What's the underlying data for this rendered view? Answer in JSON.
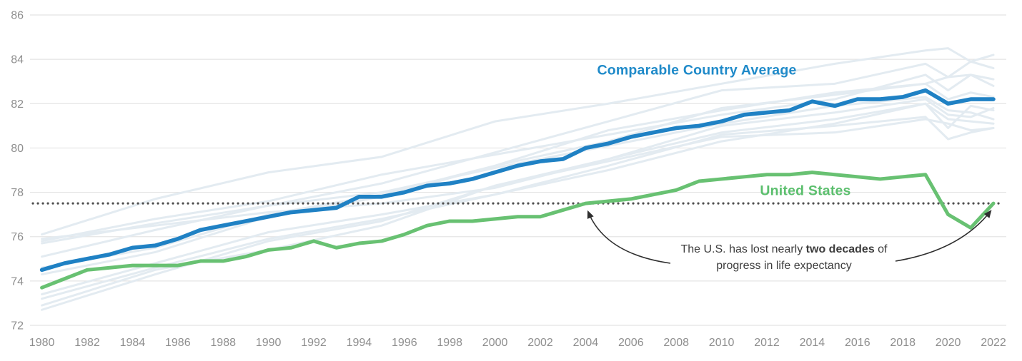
{
  "chart_data": {
    "type": "line",
    "title": "",
    "xlabel": "",
    "ylabel": "",
    "xlim": [
      1980,
      2022
    ],
    "ylim": [
      72,
      86
    ],
    "grid": "horizontal-only",
    "legend_position": "inline-labels-on-chart",
    "x_ticks": [
      1980,
      1982,
      1984,
      1986,
      1988,
      1990,
      1992,
      1994,
      1996,
      1998,
      2000,
      2002,
      2004,
      2006,
      2008,
      2010,
      2012,
      2014,
      2016,
      2018,
      2020,
      2022
    ],
    "y_ticks": [
      86,
      84,
      82,
      80,
      78,
      76,
      74,
      72
    ],
    "x": [
      1980,
      1981,
      1982,
      1983,
      1984,
      1985,
      1986,
      1987,
      1988,
      1989,
      1990,
      1991,
      1992,
      1993,
      1994,
      1995,
      1996,
      1997,
      1998,
      1999,
      2000,
      2001,
      2002,
      2003,
      2004,
      2005,
      2006,
      2007,
      2008,
      2009,
      2010,
      2011,
      2012,
      2013,
      2014,
      2015,
      2016,
      2017,
      2018,
      2019,
      2020,
      2021,
      2022
    ],
    "series": [
      {
        "name": "Comparable Country Average",
        "color": "#1f81c4",
        "values": [
          74.5,
          74.8,
          75.0,
          75.2,
          75.5,
          75.6,
          75.9,
          76.3,
          76.5,
          76.7,
          76.9,
          77.1,
          77.2,
          77.3,
          77.8,
          77.8,
          78.0,
          78.3,
          78.4,
          78.6,
          78.9,
          79.2,
          79.4,
          79.5,
          80.0,
          80.2,
          80.5,
          80.7,
          80.9,
          81.0,
          81.2,
          81.5,
          81.6,
          81.7,
          82.1,
          81.9,
          82.2,
          82.2,
          82.3,
          82.6,
          82.0,
          82.2,
          82.2
        ]
      },
      {
        "name": "United States",
        "color": "#68c172",
        "values": [
          73.7,
          74.1,
          74.5,
          74.6,
          74.7,
          74.7,
          74.7,
          74.9,
          74.9,
          75.1,
          75.4,
          75.5,
          75.8,
          75.5,
          75.7,
          75.8,
          76.1,
          76.5,
          76.7,
          76.7,
          76.8,
          76.9,
          76.9,
          77.2,
          77.5,
          77.6,
          77.7,
          77.9,
          78.1,
          78.5,
          78.6,
          78.7,
          78.8,
          78.8,
          78.9,
          78.8,
          78.7,
          78.6,
          78.7,
          78.8,
          77.0,
          76.4,
          77.5
        ]
      }
    ],
    "background_series": {
      "description": "faded unlabeled lines for individual comparable countries (approximate values)",
      "color": "#e3ebf1",
      "x": [
        1980,
        1985,
        1990,
        1995,
        2000,
        2005,
        2010,
        2015,
        2019,
        2020,
        2021,
        2022
      ],
      "lines": [
        [
          76.1,
          77.7,
          78.9,
          79.6,
          81.2,
          82.0,
          82.9,
          83.8,
          84.4,
          84.5,
          83.9,
          84.2
        ],
        [
          75.7,
          76.6,
          77.4,
          78.4,
          79.8,
          81.2,
          82.6,
          82.9,
          83.8,
          83.2,
          83.9,
          83.6
        ],
        [
          75.8,
          76.8,
          77.6,
          78.8,
          79.7,
          80.6,
          81.5,
          82.2,
          83.3,
          82.6,
          83.3,
          83.1
        ],
        [
          74.6,
          75.5,
          77.0,
          77.9,
          79.2,
          80.8,
          81.7,
          82.5,
          82.9,
          83.2,
          83.3,
          82.8
        ],
        [
          74.3,
          75.3,
          76.9,
          77.8,
          79.2,
          80.3,
          81.8,
          82.4,
          82.9,
          82.2,
          82.5,
          82.3
        ],
        [
          75.1,
          76.3,
          77.4,
          78.0,
          79.1,
          80.1,
          81.1,
          81.9,
          82.3,
          81.7,
          81.6,
          81.3
        ],
        [
          75.9,
          76.5,
          77.1,
          77.5,
          78.2,
          79.5,
          81.0,
          81.6,
          82.2,
          81.5,
          81.4,
          81.8
        ],
        [
          73.4,
          74.8,
          76.2,
          77.0,
          77.9,
          79.0,
          80.3,
          81.1,
          82.0,
          80.9,
          81.9,
          81.7
        ],
        [
          72.7,
          74.3,
          75.8,
          76.7,
          78.3,
          79.5,
          80.7,
          81.3,
          82.0,
          81.3,
          81.2,
          81.1
        ],
        [
          72.9,
          74.5,
          75.4,
          76.5,
          78.3,
          79.4,
          80.5,
          80.7,
          81.3,
          81.1,
          80.8,
          80.9
        ],
        [
          73.2,
          74.6,
          75.9,
          76.8,
          77.9,
          79.2,
          80.6,
          81.0,
          81.4,
          80.4,
          80.7,
          80.9
        ]
      ]
    },
    "reference_line": {
      "value": 77.5,
      "style": "dotted",
      "color": "#4d4d4d"
    },
    "annotation": {
      "line1_pre": "The U.S. has lost nearly ",
      "line1_bold": "two decades",
      "line1_post": " of",
      "line2": "progress in life expectancy"
    }
  },
  "colors": {
    "blue_line": "#1f81c4",
    "blue_label": "#1f8ac9",
    "green_line": "#68c172",
    "green_label": "#5cbf6e",
    "faded_lines": "#e3ebf1",
    "gridline": "#e4e4e4",
    "tick_text": "#8e8e8e",
    "dotted_reference": "#4d4d4d",
    "annotation_text": "#3d3d3d",
    "arrow": "#2e2e2e"
  }
}
